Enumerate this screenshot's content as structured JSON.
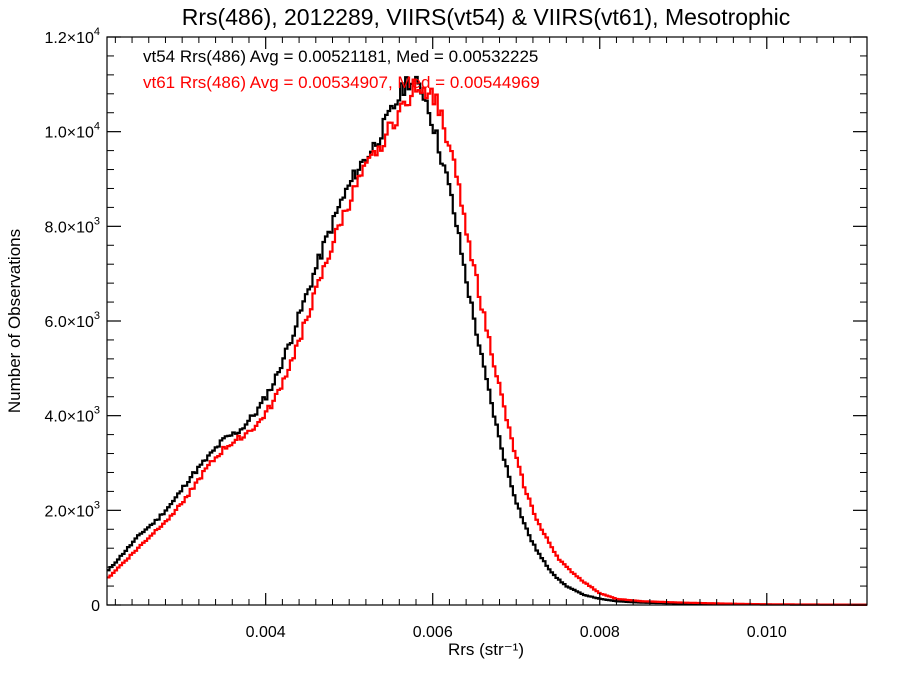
{
  "chart_data": {
    "type": "line",
    "title": "Rrs(486), 2012289, VIIRS(vt54) & VIIRS(vt61), Mesotrophic",
    "xlabel": "Rrs (str⁻¹)",
    "ylabel": "Number of Observations",
    "xlim": [
      0.0021,
      0.0112
    ],
    "ylim": [
      0,
      12000
    ],
    "x_ticks": [
      {
        "value": 0.004,
        "label": "0.004"
      },
      {
        "value": 0.006,
        "label": "0.006"
      },
      {
        "value": 0.008,
        "label": "0.008"
      },
      {
        "value": 0.01,
        "label": "0.010"
      }
    ],
    "y_ticks": [
      {
        "value": 0,
        "label": "0",
        "exp": ""
      },
      {
        "value": 2000,
        "label": "2.0×10",
        "exp": "3"
      },
      {
        "value": 4000,
        "label": "4.0×10",
        "exp": "3"
      },
      {
        "value": 6000,
        "label": "6.0×10",
        "exp": "3"
      },
      {
        "value": 8000,
        "label": "8.0×10",
        "exp": "3"
      },
      {
        "value": 10000,
        "label": "1.0×10",
        "exp": "4"
      },
      {
        "value": 12000,
        "label": "1.2×10",
        "exp": "4"
      }
    ],
    "grid": false,
    "legend_position": "top-left",
    "series": [
      {
        "name": "vt54 Rrs(486) Avg = 0.00521181, Med = 0.00532225",
        "color": "#000000",
        "points": [
          [
            0.0021,
            700
          ],
          [
            0.0023,
            1100
          ],
          [
            0.0025,
            1500
          ],
          [
            0.0027,
            1800
          ],
          [
            0.0029,
            2200
          ],
          [
            0.0031,
            2700
          ],
          [
            0.0033,
            3100
          ],
          [
            0.0035,
            3500
          ],
          [
            0.0037,
            3700
          ],
          [
            0.0039,
            4100
          ],
          [
            0.0041,
            4700
          ],
          [
            0.0043,
            5600
          ],
          [
            0.0045,
            6600
          ],
          [
            0.0047,
            7600
          ],
          [
            0.0049,
            8500
          ],
          [
            0.0051,
            9200
          ],
          [
            0.0053,
            9700
          ],
          [
            0.0055,
            10400
          ],
          [
            0.0057,
            11100
          ],
          [
            0.0058,
            11000
          ],
          [
            0.0059,
            10800
          ],
          [
            0.006,
            10200
          ],
          [
            0.0061,
            9500
          ],
          [
            0.0062,
            8800
          ],
          [
            0.0063,
            7900
          ],
          [
            0.0064,
            6900
          ],
          [
            0.0065,
            6000
          ],
          [
            0.0066,
            5100
          ],
          [
            0.0067,
            4300
          ],
          [
            0.0068,
            3500
          ],
          [
            0.0069,
            2800
          ],
          [
            0.007,
            2200
          ],
          [
            0.0071,
            1700
          ],
          [
            0.0072,
            1300
          ],
          [
            0.0073,
            1000
          ],
          [
            0.0074,
            750
          ],
          [
            0.0075,
            550
          ],
          [
            0.0076,
            400
          ],
          [
            0.0078,
            220
          ],
          [
            0.008,
            130
          ],
          [
            0.0082,
            80
          ],
          [
            0.0085,
            50
          ],
          [
            0.009,
            30
          ],
          [
            0.0095,
            20
          ],
          [
            0.01,
            10
          ],
          [
            0.0112,
            5
          ]
        ]
      },
      {
        "name": "vt61 Rrs(486) Avg = 0.00534907, Med = 0.00544969",
        "color": "#ff0000",
        "points": [
          [
            0.0021,
            550
          ],
          [
            0.0023,
            900
          ],
          [
            0.0025,
            1250
          ],
          [
            0.0027,
            1600
          ],
          [
            0.0029,
            1950
          ],
          [
            0.0031,
            2400
          ],
          [
            0.0033,
            2900
          ],
          [
            0.0035,
            3300
          ],
          [
            0.0037,
            3550
          ],
          [
            0.0039,
            3800
          ],
          [
            0.0041,
            4300
          ],
          [
            0.0043,
            5100
          ],
          [
            0.0045,
            6100
          ],
          [
            0.0047,
            7100
          ],
          [
            0.0049,
            8100
          ],
          [
            0.0051,
            8900
          ],
          [
            0.0053,
            9500
          ],
          [
            0.0055,
            10100
          ],
          [
            0.0057,
            10700
          ],
          [
            0.0058,
            11000
          ],
          [
            0.0059,
            10900
          ],
          [
            0.006,
            10800
          ],
          [
            0.0061,
            10400
          ],
          [
            0.0062,
            9700
          ],
          [
            0.0063,
            8900
          ],
          [
            0.0064,
            8000
          ],
          [
            0.0065,
            7100
          ],
          [
            0.0066,
            6200
          ],
          [
            0.0067,
            5400
          ],
          [
            0.0068,
            4600
          ],
          [
            0.0069,
            3800
          ],
          [
            0.007,
            3100
          ],
          [
            0.0071,
            2500
          ],
          [
            0.0072,
            2000
          ],
          [
            0.0073,
            1600
          ],
          [
            0.0074,
            1300
          ],
          [
            0.0075,
            1000
          ],
          [
            0.0076,
            800
          ],
          [
            0.0078,
            500
          ],
          [
            0.008,
            250
          ],
          [
            0.0082,
            130
          ],
          [
            0.0085,
            80
          ],
          [
            0.009,
            50
          ],
          [
            0.0095,
            30
          ],
          [
            0.01,
            15
          ],
          [
            0.0112,
            5
          ]
        ]
      }
    ]
  }
}
